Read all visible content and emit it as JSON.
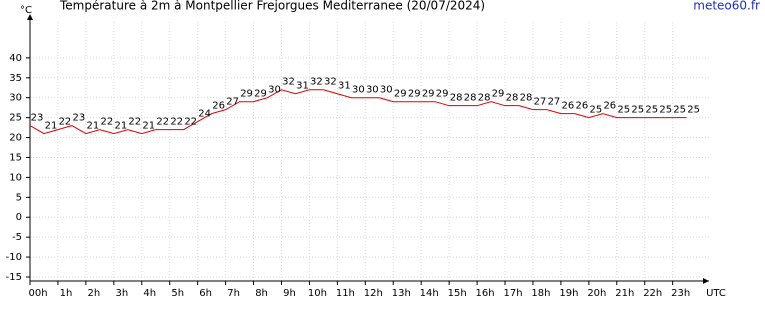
{
  "chart_data": {
    "type": "line",
    "title": "Température à 2m à Montpellier Frejorgues Mediterranee (20/07/2024)",
    "source": "meteo60.fr",
    "y_label": "°C",
    "x_label": "UTC",
    "x": [
      0,
      0.5,
      1,
      1.5,
      2,
      2.5,
      3,
      3.5,
      4,
      4.5,
      5,
      5.5,
      6,
      6.5,
      7,
      7.5,
      8,
      8.5,
      9,
      9.5,
      10,
      10.5,
      11,
      11.5,
      12,
      12.5,
      13,
      13.5,
      14,
      14.5,
      15,
      15.5,
      16,
      16.5,
      17,
      17.5,
      18,
      18.5,
      19,
      19.5,
      20,
      20.5,
      21,
      21.5,
      22,
      22.5,
      23,
      23.5
    ],
    "series": [
      {
        "color": "#e00000",
        "values": [
          23,
          21,
          22,
          23,
          21,
          22,
          21,
          22,
          21,
          22,
          22,
          22,
          24,
          26,
          27,
          29,
          29,
          30,
          32,
          31,
          32,
          32,
          31,
          30,
          30,
          30,
          29,
          29,
          29,
          29,
          28,
          28,
          28,
          29,
          28,
          28,
          27,
          27,
          26,
          26,
          25,
          26,
          25,
          25,
          25,
          25,
          25,
          25
        ]
      }
    ],
    "xlim": [
      0,
      24.3
    ],
    "xticks": [
      {
        "value": 0,
        "label": "00h"
      },
      {
        "value": 1,
        "label": "1h"
      },
      {
        "value": 2,
        "label": "2h"
      },
      {
        "value": 3,
        "label": "3h"
      },
      {
        "value": 4,
        "label": "4h"
      },
      {
        "value": 5,
        "label": "5h"
      },
      {
        "value": 6,
        "label": "6h"
      },
      {
        "value": 7,
        "label": "7h"
      },
      {
        "value": 8,
        "label": "8h"
      },
      {
        "value": 9,
        "label": "9h"
      },
      {
        "value": 10,
        "label": "10h"
      },
      {
        "value": 11,
        "label": "11h"
      },
      {
        "value": 12,
        "label": "12h"
      },
      {
        "value": 13,
        "label": "13h"
      },
      {
        "value": 14,
        "label": "14h"
      },
      {
        "value": 15,
        "label": "15h"
      },
      {
        "value": 16,
        "label": "16h"
      },
      {
        "value": 17,
        "label": "17h"
      },
      {
        "value": 18,
        "label": "18h"
      },
      {
        "value": 19,
        "label": "19h"
      },
      {
        "value": 20,
        "label": "20h"
      },
      {
        "value": 21,
        "label": "21h"
      },
      {
        "value": 22,
        "label": "22h"
      },
      {
        "value": 23,
        "label": "23h"
      }
    ],
    "ylim": [
      -16,
      49
    ],
    "yticks": [
      -15,
      -10,
      -5,
      0,
      5,
      10,
      15,
      20,
      25,
      30,
      35,
      40
    ],
    "grid": true
  }
}
